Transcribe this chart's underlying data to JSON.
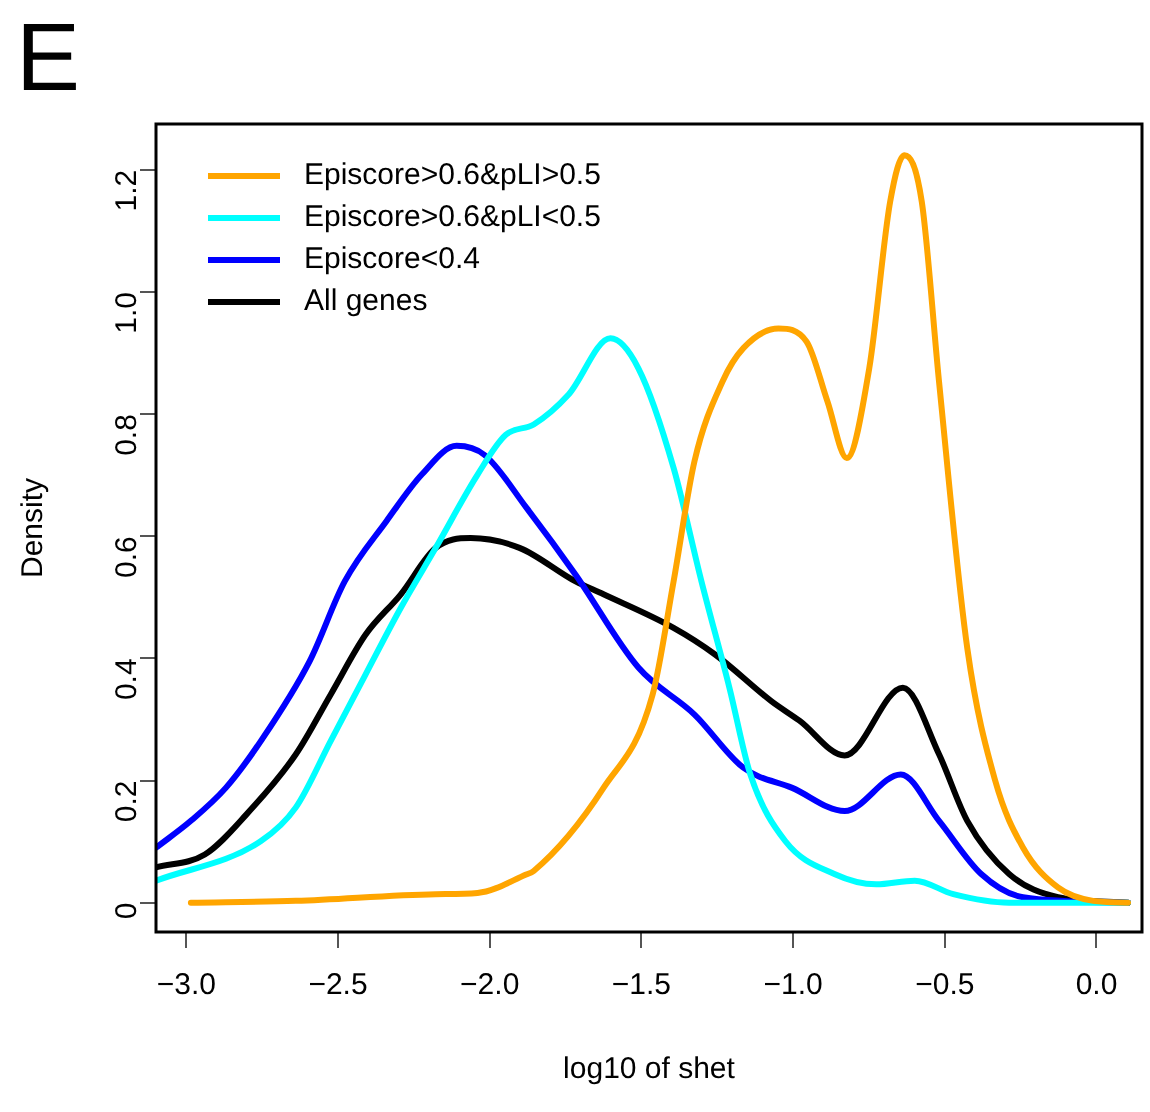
{
  "chart_data": {
    "type": "line",
    "xlabel": "log10 of shet",
    "ylabel": "Density",
    "annotations": [
      "E"
    ],
    "xlim": [
      -3.1,
      0.15
    ],
    "ylim": [
      -0.048,
      1.275
    ],
    "xticks": [
      {
        "value": -3,
        "label": "−3.0"
      },
      {
        "value": -2.5,
        "label": "−2.5"
      },
      {
        "value": -2,
        "label": "−2.0"
      },
      {
        "value": -1.5,
        "label": "−1.5"
      },
      {
        "value": -1,
        "label": "−1.0"
      },
      {
        "value": -0.5,
        "label": "−0.5"
      },
      {
        "value": 0,
        "label": "0.0"
      }
    ],
    "yticks": [
      0,
      0.2,
      0.4,
      0.6,
      0.8,
      {
        "value": 1,
        "label": "1.0"
      },
      1.2
    ],
    "legend": "top left",
    "grid": false,
    "marker": "none",
    "line_style": "solid",
    "series": [
      {
        "name": "Episcore>0.6&pLI>0.5",
        "color": "#ffa500",
        "x": [
          -2.985,
          -2.639,
          -2.178,
          -2.04,
          -1.88,
          -1.855,
          -1.625,
          -1.463,
          -1.394,
          -1.325,
          -1.233,
          -1.164,
          -1.048,
          -0.956,
          -0.887,
          -0.823,
          -0.749,
          -0.68,
          -0.633,
          -0.576,
          -0.519,
          -0.426,
          -0.334,
          -0.242,
          -0.127,
          -0.011,
          0.104
        ],
        "values": [
          0,
          0.003,
          0.014,
          0.016,
          0.046,
          0.052,
          0.188,
          0.341,
          0.526,
          0.723,
          0.853,
          0.908,
          0.94,
          0.919,
          0.821,
          0.728,
          0.875,
          1.148,
          1.224,
          1.148,
          0.853,
          0.417,
          0.2,
          0.09,
          0.025,
          0.003,
          0
        ]
      },
      {
        "name": "Episcore>0.6&pLI<0.5",
        "color": "#00ffff",
        "x": [
          -3.1,
          -2.754,
          -2.639,
          -2.524,
          -2.409,
          -2.293,
          -2.178,
          -2.04,
          -1.947,
          -1.855,
          -1.74,
          -1.602,
          -1.51,
          -1.394,
          -1.302,
          -1.21,
          -1.141,
          -1.026,
          -0.864,
          -0.726,
          -0.599,
          -0.472,
          -0.288,
          0.104
        ],
        "values": [
          0.036,
          0.101,
          0.156,
          0.265,
          0.374,
          0.483,
          0.581,
          0.701,
          0.766,
          0.783,
          0.832,
          0.924,
          0.875,
          0.712,
          0.526,
          0.352,
          0.21,
          0.101,
          0.047,
          0.03,
          0.036,
          0.014,
          0,
          0
        ]
      },
      {
        "name": "Episcore<0.4",
        "color": "#0000ff",
        "x": [
          -3.1,
          -2.985,
          -2.87,
          -2.754,
          -2.593,
          -2.478,
          -2.34,
          -2.224,
          -2.109,
          -2.017,
          -1.878,
          -1.717,
          -1.51,
          -1.325,
          -1.164,
          -1.003,
          -0.83,
          -0.645,
          -0.519,
          -0.38,
          -0.242,
          0.104
        ],
        "values": [
          0.09,
          0.134,
          0.188,
          0.265,
          0.396,
          0.526,
          0.625,
          0.701,
          0.748,
          0.733,
          0.646,
          0.537,
          0.385,
          0.308,
          0.221,
          0.188,
          0.15,
          0.21,
          0.134,
          0.047,
          0.009,
          0
        ]
      },
      {
        "name": "All genes",
        "color": "#000000",
        "x": [
          -3.1,
          -2.939,
          -2.801,
          -2.639,
          -2.524,
          -2.409,
          -2.293,
          -2.178,
          -2.063,
          -1.902,
          -1.717,
          -1.625,
          -1.394,
          -1.256,
          -1.072,
          -0.979,
          -0.83,
          -0.638,
          -0.519,
          -0.426,
          -0.288,
          -0.127,
          0.104
        ],
        "values": [
          0.058,
          0.079,
          0.145,
          0.243,
          0.341,
          0.439,
          0.505,
          0.581,
          0.597,
          0.581,
          0.526,
          0.505,
          0.45,
          0.406,
          0.33,
          0.298,
          0.241,
          0.352,
          0.243,
          0.134,
          0.047,
          0.009,
          0
        ]
      }
    ]
  }
}
